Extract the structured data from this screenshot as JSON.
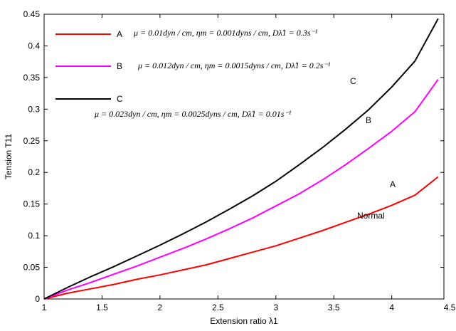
{
  "chart_data": {
    "type": "line",
    "xlabel": "Extension ratio λ1",
    "ylabel": "Tension T11",
    "xlim": [
      1,
      4.45
    ],
    "ylim": [
      0,
      0.45
    ],
    "x_ticks": [
      "1",
      "1.5",
      "2",
      "2.5",
      "3",
      "3.5",
      "4",
      "4.5"
    ],
    "y_ticks": [
      "0",
      "0.05",
      "0.1",
      "0.15",
      "0.2",
      "0.25",
      "0.3",
      "0.35",
      "0.4",
      "0.45"
    ],
    "x": [
      1.0,
      1.2,
      1.4,
      1.6,
      1.8,
      2.0,
      2.2,
      2.4,
      2.6,
      2.8,
      3.0,
      3.2,
      3.4,
      3.6,
      3.8,
      4.0,
      4.2,
      4.4
    ],
    "series": [
      {
        "name": "A",
        "color": "#ff0000",
        "values": [
          0.0,
          0.009,
          0.016,
          0.023,
          0.031,
          0.038,
          0.046,
          0.054,
          0.064,
          0.074,
          0.084,
          0.096,
          0.108,
          0.121,
          0.134,
          0.148,
          0.164,
          0.193
        ]
      },
      {
        "name": "B",
        "color": "#ff00ff",
        "values": [
          0.0,
          0.014,
          0.026,
          0.039,
          0.052,
          0.066,
          0.08,
          0.095,
          0.111,
          0.128,
          0.147,
          0.166,
          0.188,
          0.212,
          0.238,
          0.265,
          0.296,
          0.347
        ]
      },
      {
        "name": "C",
        "color": "#000000",
        "values": [
          0.0,
          0.018,
          0.035,
          0.051,
          0.068,
          0.085,
          0.103,
          0.122,
          0.142,
          0.163,
          0.186,
          0.212,
          0.239,
          0.268,
          0.299,
          0.335,
          0.376,
          0.443
        ]
      }
    ],
    "legend": {
      "placement": "top-left",
      "entries": [
        {
          "label": "A",
          "color": "#ff0000"
        },
        {
          "label": "B",
          "color": "#ff00ff"
        },
        {
          "label": "C",
          "color": "#000000"
        }
      ]
    },
    "annotations": [
      {
        "id": "a",
        "text": "μ = 0.01dyn / cm, ηm = 0.001dyns / cm, Dλ̂1 = 0.3s⁻¹"
      },
      {
        "id": "b",
        "text": "μ = 0.012dyn / cm, ηm = 0.0015dyns / cm, Dλ̂1 = 0.2s⁻¹"
      },
      {
        "id": "c",
        "text": "μ = 0.023dyn / cm, ηm = 0.0025dyns / cm, Dλ̂1 = 0.01s⁻¹"
      }
    ],
    "curve_labels": [
      {
        "id": "a",
        "text": "A"
      },
      {
        "id": "b",
        "text": "B"
      },
      {
        "id": "c",
        "text": "C"
      },
      {
        "id": "normal",
        "text": "Normal"
      }
    ],
    "grid": false
  }
}
